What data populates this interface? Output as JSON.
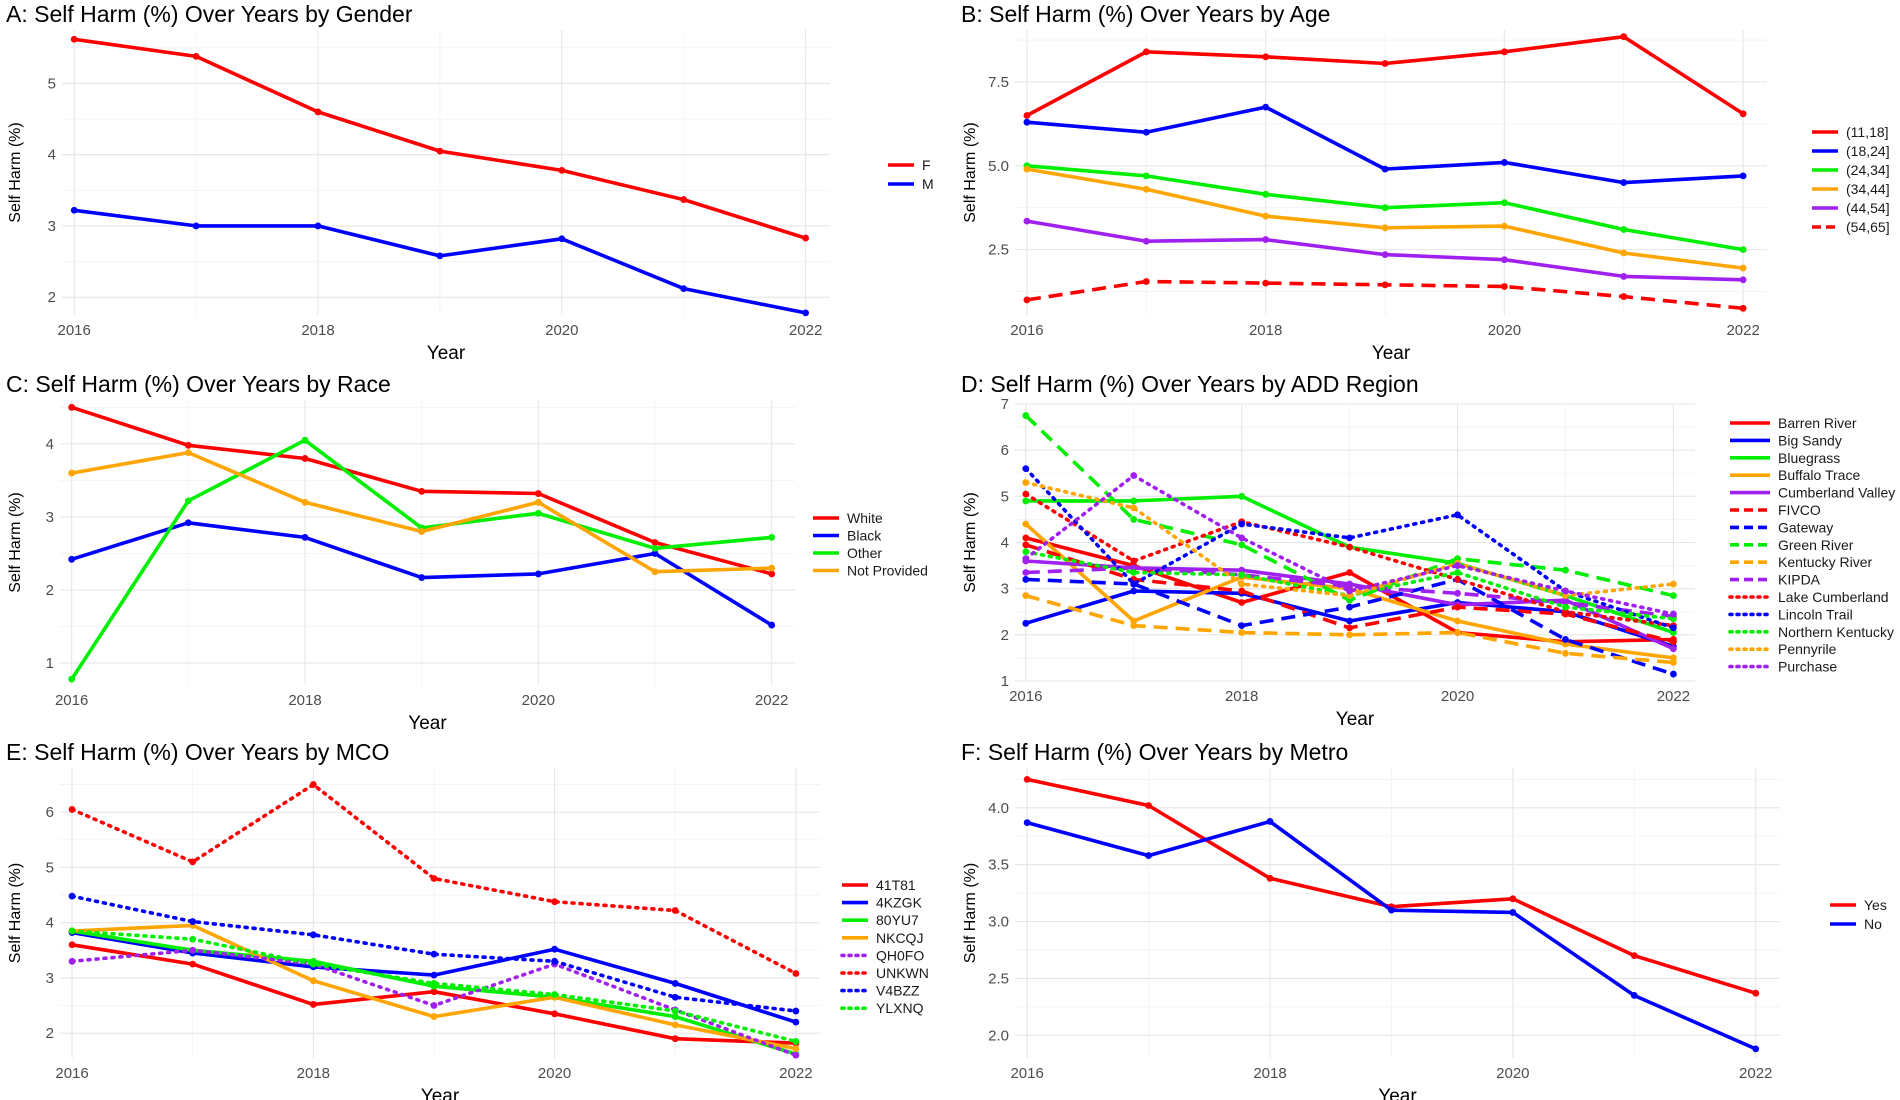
{
  "chart_data": [
    {
      "id": "A",
      "type": "line",
      "title": "A: Self Harm (%) Over Years by Gender",
      "xlabel": "Year",
      "ylabel": "Self Harm (%)",
      "xlim": [
        2015.9,
        2022.2
      ],
      "ylim": [
        1.75,
        5.75
      ],
      "xticks": [
        2016,
        2018,
        2020,
        2022
      ],
      "yticks": [
        2,
        3,
        4,
        5
      ],
      "x": [
        2016,
        2017,
        2018,
        2019,
        2020,
        2021,
        2022
      ],
      "legend_position": "right",
      "series": [
        {
          "name": "F",
          "color": "#ff0000",
          "dash": "solid",
          "values": [
            5.62,
            5.38,
            4.6,
            4.05,
            3.78,
            3.37,
            2.83
          ]
        },
        {
          "name": "M",
          "color": "#0000ff",
          "dash": "solid",
          "values": [
            3.22,
            3.0,
            3.0,
            2.58,
            2.82,
            2.12,
            1.78
          ]
        }
      ]
    },
    {
      "id": "B",
      "type": "line",
      "title": "B: Self Harm (%) Over Years by Age",
      "xlabel": "Year",
      "ylabel": "Self Harm (%)",
      "xlim": [
        2015.9,
        2022.2
      ],
      "ylim": [
        0.55,
        9.05
      ],
      "xticks": [
        2016,
        2018,
        2020,
        2022
      ],
      "yticks": [
        2.5,
        5.0,
        7.5
      ],
      "ytick_labels": [
        "2.5",
        "5.0",
        "7.5"
      ],
      "x": [
        2016,
        2017,
        2018,
        2019,
        2020,
        2021,
        2022
      ],
      "legend_position": "right",
      "series": [
        {
          "name": "(11,18]",
          "color": "#ff0000",
          "dash": "solid",
          "values": [
            6.5,
            8.4,
            8.25,
            8.05,
            8.4,
            8.85,
            6.55
          ]
        },
        {
          "name": "(18,24]",
          "color": "#0000ff",
          "dash": "solid",
          "values": [
            6.3,
            6.0,
            6.75,
            4.9,
            5.1,
            4.5,
            4.7
          ]
        },
        {
          "name": "(24,34]",
          "color": "#00ee00",
          "dash": "solid",
          "values": [
            5.0,
            4.7,
            4.15,
            3.75,
            3.9,
            3.1,
            2.5
          ]
        },
        {
          "name": "(34,44]",
          "color": "#ffa500",
          "dash": "solid",
          "values": [
            4.9,
            4.3,
            3.5,
            3.15,
            3.2,
            2.4,
            1.95
          ]
        },
        {
          "name": "(44,54]",
          "color": "#a020f0",
          "dash": "solid",
          "values": [
            3.35,
            2.75,
            2.8,
            2.35,
            2.2,
            1.7,
            1.6
          ]
        },
        {
          "name": "(54,65]",
          "color": "#ff0000",
          "dash": "dashed",
          "values": [
            1.0,
            1.55,
            1.5,
            1.45,
            1.4,
            1.1,
            0.75
          ]
        }
      ]
    },
    {
      "id": "C",
      "type": "line",
      "title": "C: Self Harm (%) Over Years by Race",
      "xlabel": "Year",
      "ylabel": "Self Harm (%)",
      "xlim": [
        2015.9,
        2022.2
      ],
      "ylim": [
        0.7,
        4.6
      ],
      "xticks": [
        2016,
        2018,
        2020,
        2022
      ],
      "yticks": [
        1,
        2,
        3,
        4
      ],
      "x": [
        2016,
        2017,
        2018,
        2019,
        2020,
        2021,
        2022
      ],
      "legend_position": "right",
      "series": [
        {
          "name": "White",
          "color": "#ff0000",
          "dash": "solid",
          "values": [
            4.5,
            3.98,
            3.8,
            3.35,
            3.32,
            2.65,
            2.22
          ]
        },
        {
          "name": "Black",
          "color": "#0000ff",
          "dash": "solid",
          "values": [
            2.42,
            2.92,
            2.72,
            2.17,
            2.22,
            2.5,
            1.52
          ]
        },
        {
          "name": "Other",
          "color": "#00ee00",
          "dash": "solid",
          "values": [
            0.78,
            3.22,
            4.05,
            2.85,
            3.05,
            2.57,
            2.72
          ]
        },
        {
          "name": "Not Provided",
          "color": "#ffa500",
          "dash": "solid",
          "values": [
            3.6,
            3.88,
            3.2,
            2.8,
            3.2,
            2.25,
            2.3
          ]
        }
      ]
    },
    {
      "id": "D",
      "type": "line",
      "title": "D: Self Harm (%) Over Years by ADD Region",
      "xlabel": "Year",
      "ylabel": "Self Harm (%)",
      "xlim": [
        2015.9,
        2022.2
      ],
      "ylim": [
        1.0,
        7.0
      ],
      "xticks": [
        2016,
        2018,
        2020,
        2022
      ],
      "yticks": [
        1,
        2,
        3,
        4,
        5,
        6,
        7
      ],
      "x": [
        2016,
        2017,
        2018,
        2019,
        2020,
        2021,
        2022
      ],
      "legend_position": "right",
      "series": [
        {
          "name": "Barren River",
          "color": "#ff0000",
          "dash": "solid",
          "values": [
            4.1,
            3.5,
            2.7,
            3.35,
            2.05,
            1.85,
            1.9
          ]
        },
        {
          "name": "Big Sandy",
          "color": "#0000ff",
          "dash": "solid",
          "values": [
            2.25,
            2.95,
            2.9,
            2.3,
            2.7,
            2.5,
            1.75
          ]
        },
        {
          "name": "Bluegrass",
          "color": "#00ee00",
          "dash": "solid",
          "values": [
            4.9,
            4.9,
            5.0,
            3.9,
            3.55,
            2.85,
            2.05
          ]
        },
        {
          "name": "Buffalo Trace",
          "color": "#ffa500",
          "dash": "solid",
          "values": [
            4.4,
            2.3,
            3.25,
            3.0,
            2.3,
            1.8,
            1.5
          ]
        },
        {
          "name": "Cumberland Valley",
          "color": "#a020f0",
          "dash": "solid",
          "values": [
            3.6,
            3.45,
            3.4,
            3.1,
            2.65,
            2.75,
            1.7
          ]
        },
        {
          "name": "FIVCO",
          "color": "#ff0000",
          "dash": "dashed",
          "values": [
            3.95,
            3.2,
            2.95,
            2.15,
            2.6,
            2.45,
            1.85
          ]
        },
        {
          "name": "Gateway",
          "color": "#0000ff",
          "dash": "dashed",
          "values": [
            3.2,
            3.1,
            2.2,
            2.6,
            3.2,
            1.9,
            1.15
          ]
        },
        {
          "name": "Green River",
          "color": "#00ee00",
          "dash": "dashed",
          "values": [
            6.75,
            4.5,
            3.95,
            2.75,
            3.65,
            3.4,
            2.85
          ]
        },
        {
          "name": "Kentucky River",
          "color": "#ffa500",
          "dash": "dashed",
          "values": [
            2.85,
            2.2,
            2.05,
            2.0,
            2.05,
            1.6,
            1.4
          ]
        },
        {
          "name": "KIPDA",
          "color": "#a020f0",
          "dash": "dashed",
          "values": [
            3.35,
            3.45,
            3.3,
            3.05,
            2.9,
            2.7,
            2.4
          ]
        },
        {
          "name": "Lake Cumberland",
          "color": "#ff0000",
          "dash": "dotted",
          "values": [
            5.05,
            3.6,
            4.45,
            3.9,
            3.2,
            2.5,
            2.2
          ]
        },
        {
          "name": "Lincoln Trail",
          "color": "#0000ff",
          "dash": "dotted",
          "values": [
            5.6,
            3.1,
            4.4,
            4.1,
            4.6,
            2.95,
            2.15
          ]
        },
        {
          "name": "Northern Kentucky",
          "color": "#00ee00",
          "dash": "dotted",
          "values": [
            3.8,
            3.35,
            3.3,
            2.85,
            3.35,
            2.6,
            2.35
          ]
        },
        {
          "name": "Pennyrile",
          "color": "#ffa500",
          "dash": "dotted",
          "values": [
            5.3,
            4.75,
            3.1,
            2.85,
            3.55,
            2.85,
            3.1
          ]
        },
        {
          "name": "Purchase",
          "color": "#a020f0",
          "dash": "dotted",
          "values": [
            3.65,
            5.45,
            4.1,
            2.95,
            3.5,
            2.95,
            2.45
          ]
        }
      ]
    },
    {
      "id": "E",
      "type": "line",
      "title": "E: Self Harm (%) Over Years by MCO",
      "xlabel": "Year",
      "ylabel": "Self Harm (%)",
      "xlim": [
        2015.9,
        2022.2
      ],
      "ylim": [
        1.55,
        6.8
      ],
      "xticks": [
        2016,
        2018,
        2020,
        2022
      ],
      "yticks": [
        2,
        3,
        4,
        5,
        6
      ],
      "x": [
        2016,
        2017,
        2018,
        2019,
        2020,
        2021,
        2022
      ],
      "legend_position": "right",
      "series": [
        {
          "name": "41T81",
          "color": "#ff0000",
          "dash": "solid",
          "values": [
            3.6,
            3.25,
            2.52,
            2.75,
            2.35,
            1.9,
            1.82
          ]
        },
        {
          "name": "4KZGK",
          "color": "#0000ff",
          "dash": "solid",
          "values": [
            3.82,
            3.45,
            3.2,
            3.05,
            3.52,
            2.9,
            2.2
          ]
        },
        {
          "name": "80YU7",
          "color": "#00ee00",
          "dash": "solid",
          "values": [
            3.85,
            3.5,
            3.3,
            2.85,
            2.65,
            2.3,
            1.62
          ]
        },
        {
          "name": "NKCQJ",
          "color": "#ffa500",
          "dash": "solid",
          "values": [
            3.85,
            3.95,
            2.95,
            2.3,
            2.65,
            2.15,
            1.72
          ]
        },
        {
          "name": "QH0FO",
          "color": "#a020f0",
          "dash": "dotted",
          "values": [
            3.3,
            3.5,
            3.25,
            2.5,
            3.25,
            2.42,
            1.6
          ]
        },
        {
          "name": "UNKWN",
          "color": "#ff0000",
          "dash": "dotted",
          "values": [
            6.05,
            5.1,
            6.5,
            4.8,
            4.38,
            4.22,
            3.08
          ]
        },
        {
          "name": "V4BZZ",
          "color": "#0000ff",
          "dash": "dotted",
          "values": [
            4.48,
            4.02,
            3.78,
            3.43,
            3.3,
            2.65,
            2.4
          ]
        },
        {
          "name": "YLXNQ",
          "color": "#00ee00",
          "dash": "dotted",
          "values": [
            3.85,
            3.7,
            3.25,
            2.9,
            2.7,
            2.4,
            1.85
          ]
        }
      ]
    },
    {
      "id": "F",
      "type": "line",
      "title": "F: Self Harm (%) Over Years by Metro",
      "xlabel": "Year",
      "ylabel": "Self Harm (%)",
      "xlim": [
        2015.9,
        2022.2
      ],
      "ylim": [
        1.8,
        4.35
      ],
      "xticks": [
        2016,
        2018,
        2020,
        2022
      ],
      "yticks": [
        2.0,
        2.5,
        3.0,
        3.5,
        4.0
      ],
      "ytick_labels": [
        "2.0",
        "2.5",
        "3.0",
        "3.5",
        "4.0"
      ],
      "x": [
        2016,
        2017,
        2018,
        2019,
        2020,
        2021,
        2022
      ],
      "legend_position": "right",
      "series": [
        {
          "name": "Yes",
          "color": "#ff0000",
          "dash": "solid",
          "values": [
            4.25,
            4.02,
            3.38,
            3.13,
            3.2,
            2.7,
            2.37
          ]
        },
        {
          "name": "No",
          "color": "#0000ff",
          "dash": "solid",
          "values": [
            3.87,
            3.58,
            3.88,
            3.1,
            3.08,
            2.35,
            1.88
          ]
        }
      ]
    }
  ]
}
